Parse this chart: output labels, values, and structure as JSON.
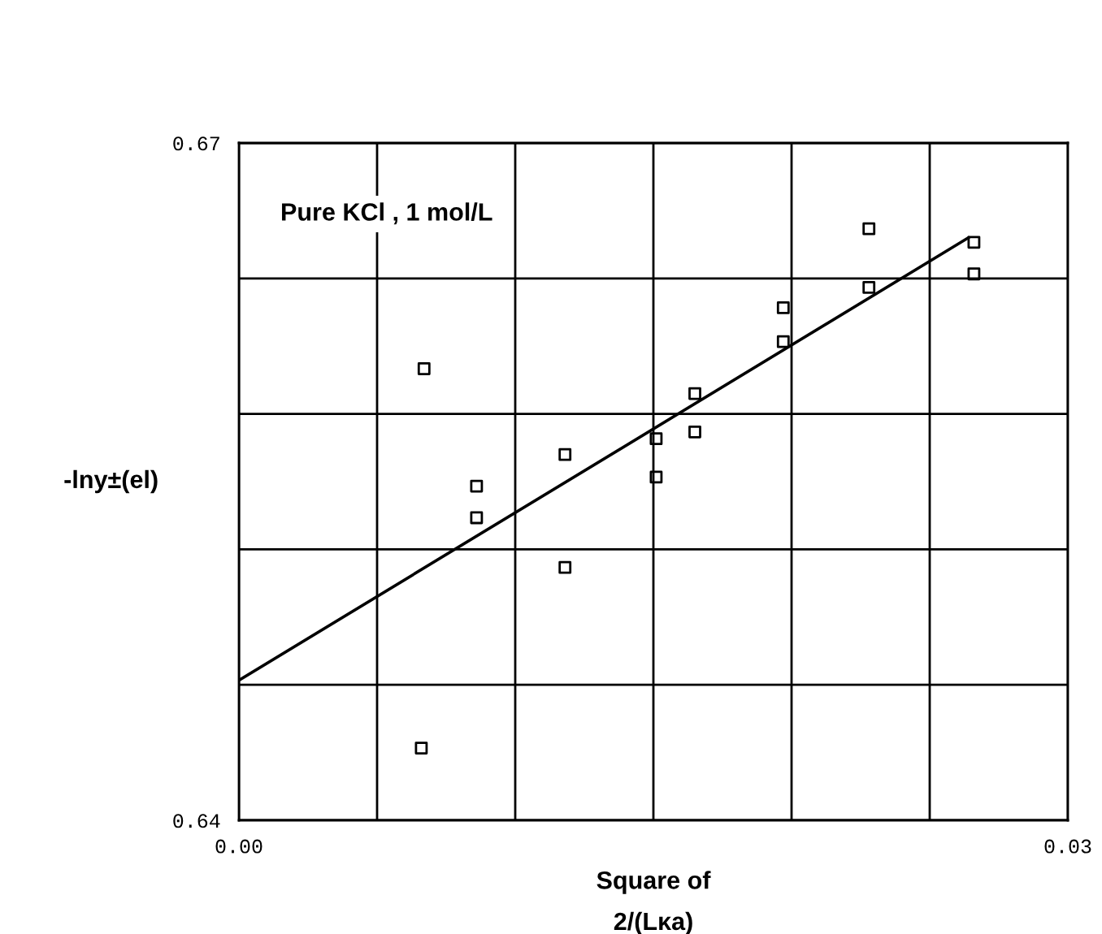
{
  "chart_data": {
    "type": "scatter",
    "xlabel": "Square of\n2/(Lκa)",
    "ylabel": "-lny±(el)",
    "annotations": [
      "Pure KCl , 1 mol/L"
    ],
    "xlim": [
      0,
      0.03
    ],
    "ylim": [
      0.64,
      0.67
    ],
    "xticks": [
      {
        "value": 0,
        "label": "0.00"
      },
      {
        "value": 0.005,
        "label": null
      },
      {
        "value": 0.01,
        "label": null
      },
      {
        "value": 0.015,
        "label": null
      },
      {
        "value": 0.02,
        "label": null
      },
      {
        "value": 0.025,
        "label": null
      },
      {
        "value": 0.03,
        "label": "0.03"
      }
    ],
    "yticks": [
      {
        "value": 0.64,
        "label": "0.64"
      },
      {
        "value": 0.646,
        "label": null
      },
      {
        "value": 0.652,
        "label": null
      },
      {
        "value": 0.658,
        "label": null
      },
      {
        "value": 0.664,
        "label": null
      },
      {
        "value": 0.67,
        "label": "0.67"
      }
    ],
    "grid": true,
    "legend": false,
    "series": [
      {
        "marker": "square",
        "color": "#000000",
        "x": [
          0.0067,
          0.0066,
          0.0086,
          0.0086,
          0.0118,
          0.0118,
          0.0151,
          0.0151,
          0.0165,
          0.0165,
          0.0197,
          0.0197,
          0.0228,
          0.0228,
          0.0266,
          0.0266
        ],
        "values": [
          0.66,
          0.6432,
          0.6548,
          0.6534,
          0.6562,
          0.6512,
          0.6569,
          0.6552,
          0.6589,
          0.6572,
          0.6627,
          0.6612,
          0.6662,
          0.6636,
          0.6656,
          0.6642
        ]
      },
      {
        "type": "line",
        "marker": "none",
        "line_style": "solid",
        "color": "#000000",
        "x": [
          0,
          0.0264
        ],
        "values": [
          0.6462,
          0.6658
        ]
      }
    ]
  }
}
